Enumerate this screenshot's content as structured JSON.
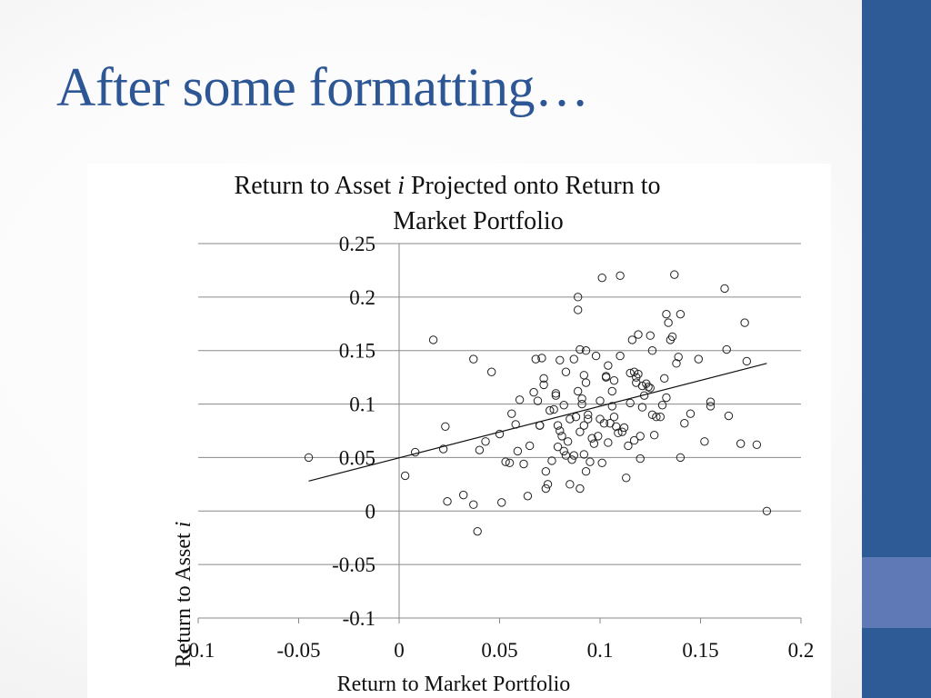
{
  "slide": {
    "title": "After some formatting…"
  },
  "colors": {
    "title": "#2d5694",
    "side_bar": "#2e5a96",
    "side_bar_accent": "#5f79b6"
  },
  "chart_data": {
    "type": "scatter",
    "title_line1": "Return to Asset i Projected onto Return to",
    "title_line2": "Market Portfolio",
    "xlabel": "Return to Market Portfolio",
    "ylabel": "Return to Asset i",
    "xlim": [
      -0.1,
      0.2
    ],
    "ylim": [
      -0.1,
      0.25
    ],
    "x_ticks": [
      "-0.1",
      "-0.05",
      "0",
      "0.05",
      "0.1",
      "0.15",
      "0.2"
    ],
    "y_ticks": [
      "0.25",
      "0.2",
      "0.15",
      "0.1",
      "0.05",
      "0",
      "-0.05",
      "-0.1"
    ],
    "x_tick_values": [
      -0.1,
      -0.05,
      0,
      0.05,
      0.1,
      0.15,
      0.2
    ],
    "y_tick_values": [
      0.25,
      0.2,
      0.15,
      0.1,
      0.05,
      0,
      -0.05,
      -0.1
    ],
    "grid": "horizontal",
    "trendline": [
      [
        -0.045,
        0.028
      ],
      [
        0.183,
        0.138
      ]
    ],
    "points": [
      [
        -0.045,
        0.05
      ],
      [
        0.003,
        0.033
      ],
      [
        0.008,
        0.055
      ],
      [
        0.017,
        0.16
      ],
      [
        0.022,
        0.058
      ],
      [
        0.023,
        0.079
      ],
      [
        0.024,
        0.009
      ],
      [
        0.032,
        0.015
      ],
      [
        0.037,
        0.006
      ],
      [
        0.037,
        0.142
      ],
      [
        0.039,
        -0.019
      ],
      [
        0.04,
        0.057
      ],
      [
        0.043,
        0.065
      ],
      [
        0.046,
        0.13
      ],
      [
        0.05,
        0.072
      ],
      [
        0.051,
        0.008
      ],
      [
        0.053,
        0.046
      ],
      [
        0.055,
        0.045
      ],
      [
        0.056,
        0.091
      ],
      [
        0.058,
        0.081
      ],
      [
        0.059,
        0.056
      ],
      [
        0.06,
        0.104
      ],
      [
        0.062,
        0.044
      ],
      [
        0.064,
        0.014
      ],
      [
        0.065,
        0.061
      ],
      [
        0.067,
        0.111
      ],
      [
        0.068,
        0.142
      ],
      [
        0.069,
        0.103
      ],
      [
        0.07,
        0.08
      ],
      [
        0.07,
        0.08
      ],
      [
        0.071,
        0.143
      ],
      [
        0.072,
        0.118
      ],
      [
        0.072,
        0.124
      ],
      [
        0.073,
        0.037
      ],
      [
        0.073,
        0.021
      ],
      [
        0.074,
        0.025
      ],
      [
        0.075,
        0.094
      ],
      [
        0.076,
        0.047
      ],
      [
        0.077,
        0.095
      ],
      [
        0.078,
        0.108
      ],
      [
        0.078,
        0.11
      ],
      [
        0.079,
        0.08
      ],
      [
        0.079,
        0.06
      ],
      [
        0.08,
        0.075
      ],
      [
        0.08,
        0.141
      ],
      [
        0.081,
        0.07
      ],
      [
        0.082,
        0.099
      ],
      [
        0.082,
        0.056
      ],
      [
        0.083,
        0.13
      ],
      [
        0.083,
        0.052
      ],
      [
        0.084,
        0.065
      ],
      [
        0.085,
        0.025
      ],
      [
        0.085,
        0.086
      ],
      [
        0.086,
        0.048
      ],
      [
        0.087,
        0.142
      ],
      [
        0.087,
        0.052
      ],
      [
        0.088,
        0.088
      ],
      [
        0.089,
        0.2
      ],
      [
        0.089,
        0.188
      ],
      [
        0.089,
        0.112
      ],
      [
        0.09,
        0.074
      ],
      [
        0.09,
        0.151
      ],
      [
        0.09,
        0.021
      ],
      [
        0.091,
        0.1
      ],
      [
        0.091,
        0.105
      ],
      [
        0.092,
        0.053
      ],
      [
        0.092,
        0.08
      ],
      [
        0.092,
        0.127
      ],
      [
        0.093,
        0.12
      ],
      [
        0.093,
        0.037
      ],
      [
        0.093,
        0.15
      ],
      [
        0.094,
        0.086
      ],
      [
        0.094,
        0.09
      ],
      [
        0.095,
        0.046
      ],
      [
        0.096,
        0.068
      ],
      [
        0.097,
        0.063
      ],
      [
        0.098,
        0.145
      ],
      [
        0.099,
        0.07
      ],
      [
        0.1,
        0.103
      ],
      [
        0.1,
        0.086
      ],
      [
        0.101,
        0.218
      ],
      [
        0.101,
        0.045
      ],
      [
        0.102,
        0.082
      ],
      [
        0.103,
        0.126
      ],
      [
        0.103,
        0.125
      ],
      [
        0.104,
        0.136
      ],
      [
        0.104,
        0.064
      ],
      [
        0.105,
        0.082
      ],
      [
        0.106,
        0.098
      ],
      [
        0.106,
        0.112
      ],
      [
        0.107,
        0.122
      ],
      [
        0.107,
        0.088
      ],
      [
        0.108,
        0.079
      ],
      [
        0.109,
        0.073
      ],
      [
        0.11,
        0.145
      ],
      [
        0.11,
        0.22
      ],
      [
        0.111,
        0.074
      ],
      [
        0.112,
        0.078
      ],
      [
        0.113,
        0.031
      ],
      [
        0.114,
        0.061
      ],
      [
        0.115,
        0.101
      ],
      [
        0.115,
        0.129
      ],
      [
        0.116,
        0.16
      ],
      [
        0.117,
        0.066
      ],
      [
        0.117,
        0.13
      ],
      [
        0.118,
        0.12
      ],
      [
        0.118,
        0.125
      ],
      [
        0.119,
        0.165
      ],
      [
        0.119,
        0.128
      ],
      [
        0.12,
        0.07
      ],
      [
        0.12,
        0.049
      ],
      [
        0.121,
        0.097
      ],
      [
        0.121,
        0.117
      ],
      [
        0.122,
        0.108
      ],
      [
        0.123,
        0.119
      ],
      [
        0.124,
        0.116
      ],
      [
        0.125,
        0.115
      ],
      [
        0.125,
        0.164
      ],
      [
        0.126,
        0.09
      ],
      [
        0.126,
        0.15
      ],
      [
        0.127,
        0.071
      ],
      [
        0.128,
        0.088
      ],
      [
        0.13,
        0.088
      ],
      [
        0.131,
        0.099
      ],
      [
        0.132,
        0.124
      ],
      [
        0.133,
        0.106
      ],
      [
        0.133,
        0.184
      ],
      [
        0.134,
        0.176
      ],
      [
        0.135,
        0.16
      ],
      [
        0.136,
        0.163
      ],
      [
        0.137,
        0.221
      ],
      [
        0.138,
        0.138
      ],
      [
        0.139,
        0.144
      ],
      [
        0.14,
        0.05
      ],
      [
        0.14,
        0.184
      ],
      [
        0.142,
        0.082
      ],
      [
        0.145,
        0.091
      ],
      [
        0.149,
        0.142
      ],
      [
        0.152,
        0.065
      ],
      [
        0.155,
        0.098
      ],
      [
        0.155,
        0.102
      ],
      [
        0.162,
        0.208
      ],
      [
        0.163,
        0.151
      ],
      [
        0.164,
        0.089
      ],
      [
        0.17,
        0.063
      ],
      [
        0.172,
        0.176
      ],
      [
        0.173,
        0.14
      ],
      [
        0.178,
        0.062
      ],
      [
        0.183,
        0.0
      ]
    ]
  }
}
